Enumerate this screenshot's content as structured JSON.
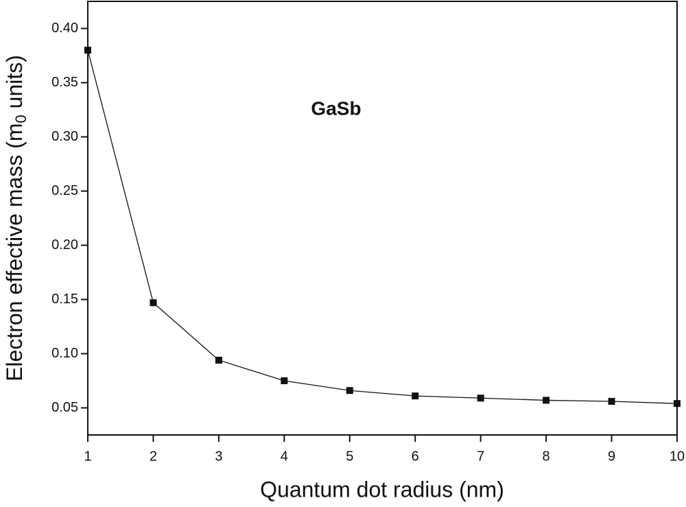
{
  "chart_data": {
    "type": "line",
    "xlabel": "Quantum dot radius (nm)",
    "ylabel": [
      "Electron effective mass (m",
      "0",
      " units)"
    ],
    "annotation": "GaSb",
    "x": [
      1,
      2,
      3,
      4,
      5,
      6,
      7,
      8,
      9,
      10
    ],
    "values": [
      0.38,
      0.147,
      0.094,
      0.075,
      0.066,
      0.061,
      0.059,
      0.057,
      0.056,
      0.054
    ],
    "color": "#111111",
    "marker": "square",
    "xlim": [
      1,
      10
    ],
    "xticks": [
      1,
      2,
      3,
      4,
      5,
      6,
      7,
      8,
      9,
      10
    ],
    "ylim": [
      0.025,
      0.425
    ],
    "yticks": [
      0.05,
      {
        "value": 0.1,
        "label": "0.10"
      },
      0.15,
      {
        "value": 0.2,
        "label": "0.20"
      },
      0.25,
      {
        "value": 0.3,
        "label": "0.30"
      },
      0.35,
      {
        "value": 0.4,
        "label": "0.40"
      }
    ]
  }
}
